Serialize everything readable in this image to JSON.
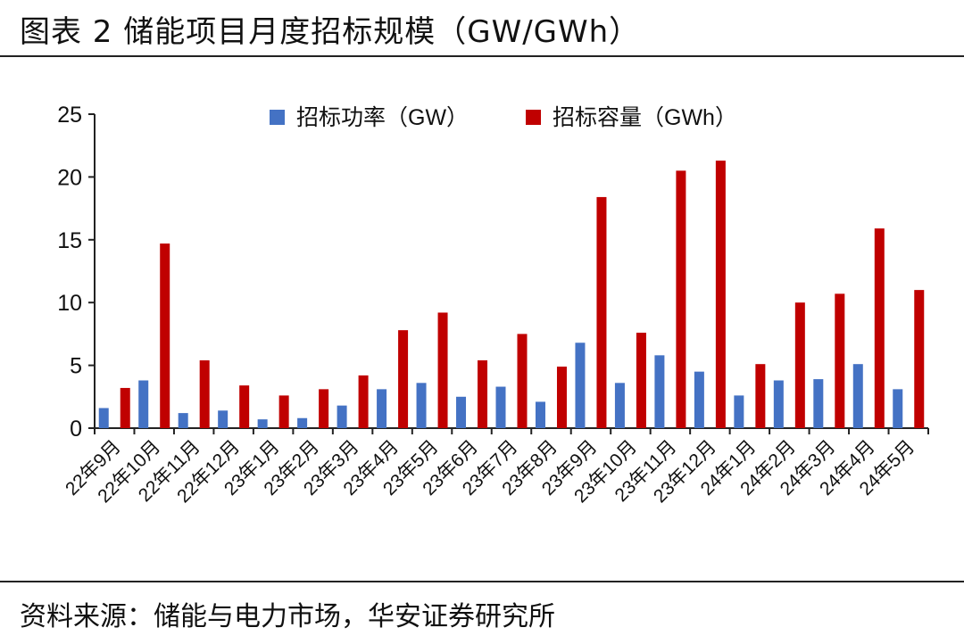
{
  "header": {
    "title": "图表 2 储能项目月度招标规模（GW/GWh）"
  },
  "footer": {
    "source": "资料来源：储能与电力市场，华安证券研究所"
  },
  "colors": {
    "power": "#4472C4",
    "capacity": "#C00000"
  },
  "chart_data": {
    "type": "bar",
    "title": "",
    "xlabel": "",
    "ylabel": "",
    "ylim": [
      0,
      25
    ],
    "yticks": [
      "0",
      "5",
      "10",
      "15",
      "20",
      "25"
    ],
    "legend_position": "top-center",
    "grid": false,
    "categories": [
      "22年9月",
      "22年10月",
      "22年11月",
      "22年12月",
      "23年1月",
      "23年2月",
      "23年3月",
      "23年4月",
      "23年5月",
      "23年6月",
      "23年7月",
      "23年8月",
      "23年9月",
      "23年10月",
      "23年11月",
      "23年12月",
      "24年1月",
      "24年2月",
      "24年3月",
      "24年4月",
      "24年5月"
    ],
    "series": [
      {
        "name": "招标功率（GW）",
        "color": "#4472C4",
        "values": [
          1.6,
          3.8,
          1.2,
          1.4,
          0.7,
          0.8,
          1.8,
          3.1,
          3.6,
          2.5,
          3.3,
          2.1,
          6.8,
          3.6,
          5.8,
          4.5,
          2.6,
          3.8,
          3.9,
          5.1,
          3.1
        ]
      },
      {
        "name": "招标容量（GWh）",
        "color": "#C00000",
        "values": [
          3.2,
          14.7,
          5.4,
          3.4,
          2.6,
          3.1,
          4.2,
          7.8,
          9.2,
          5.4,
          7.5,
          4.9,
          18.4,
          7.6,
          20.5,
          21.3,
          5.1,
          10.0,
          10.7,
          15.9,
          11.0
        ]
      }
    ]
  }
}
